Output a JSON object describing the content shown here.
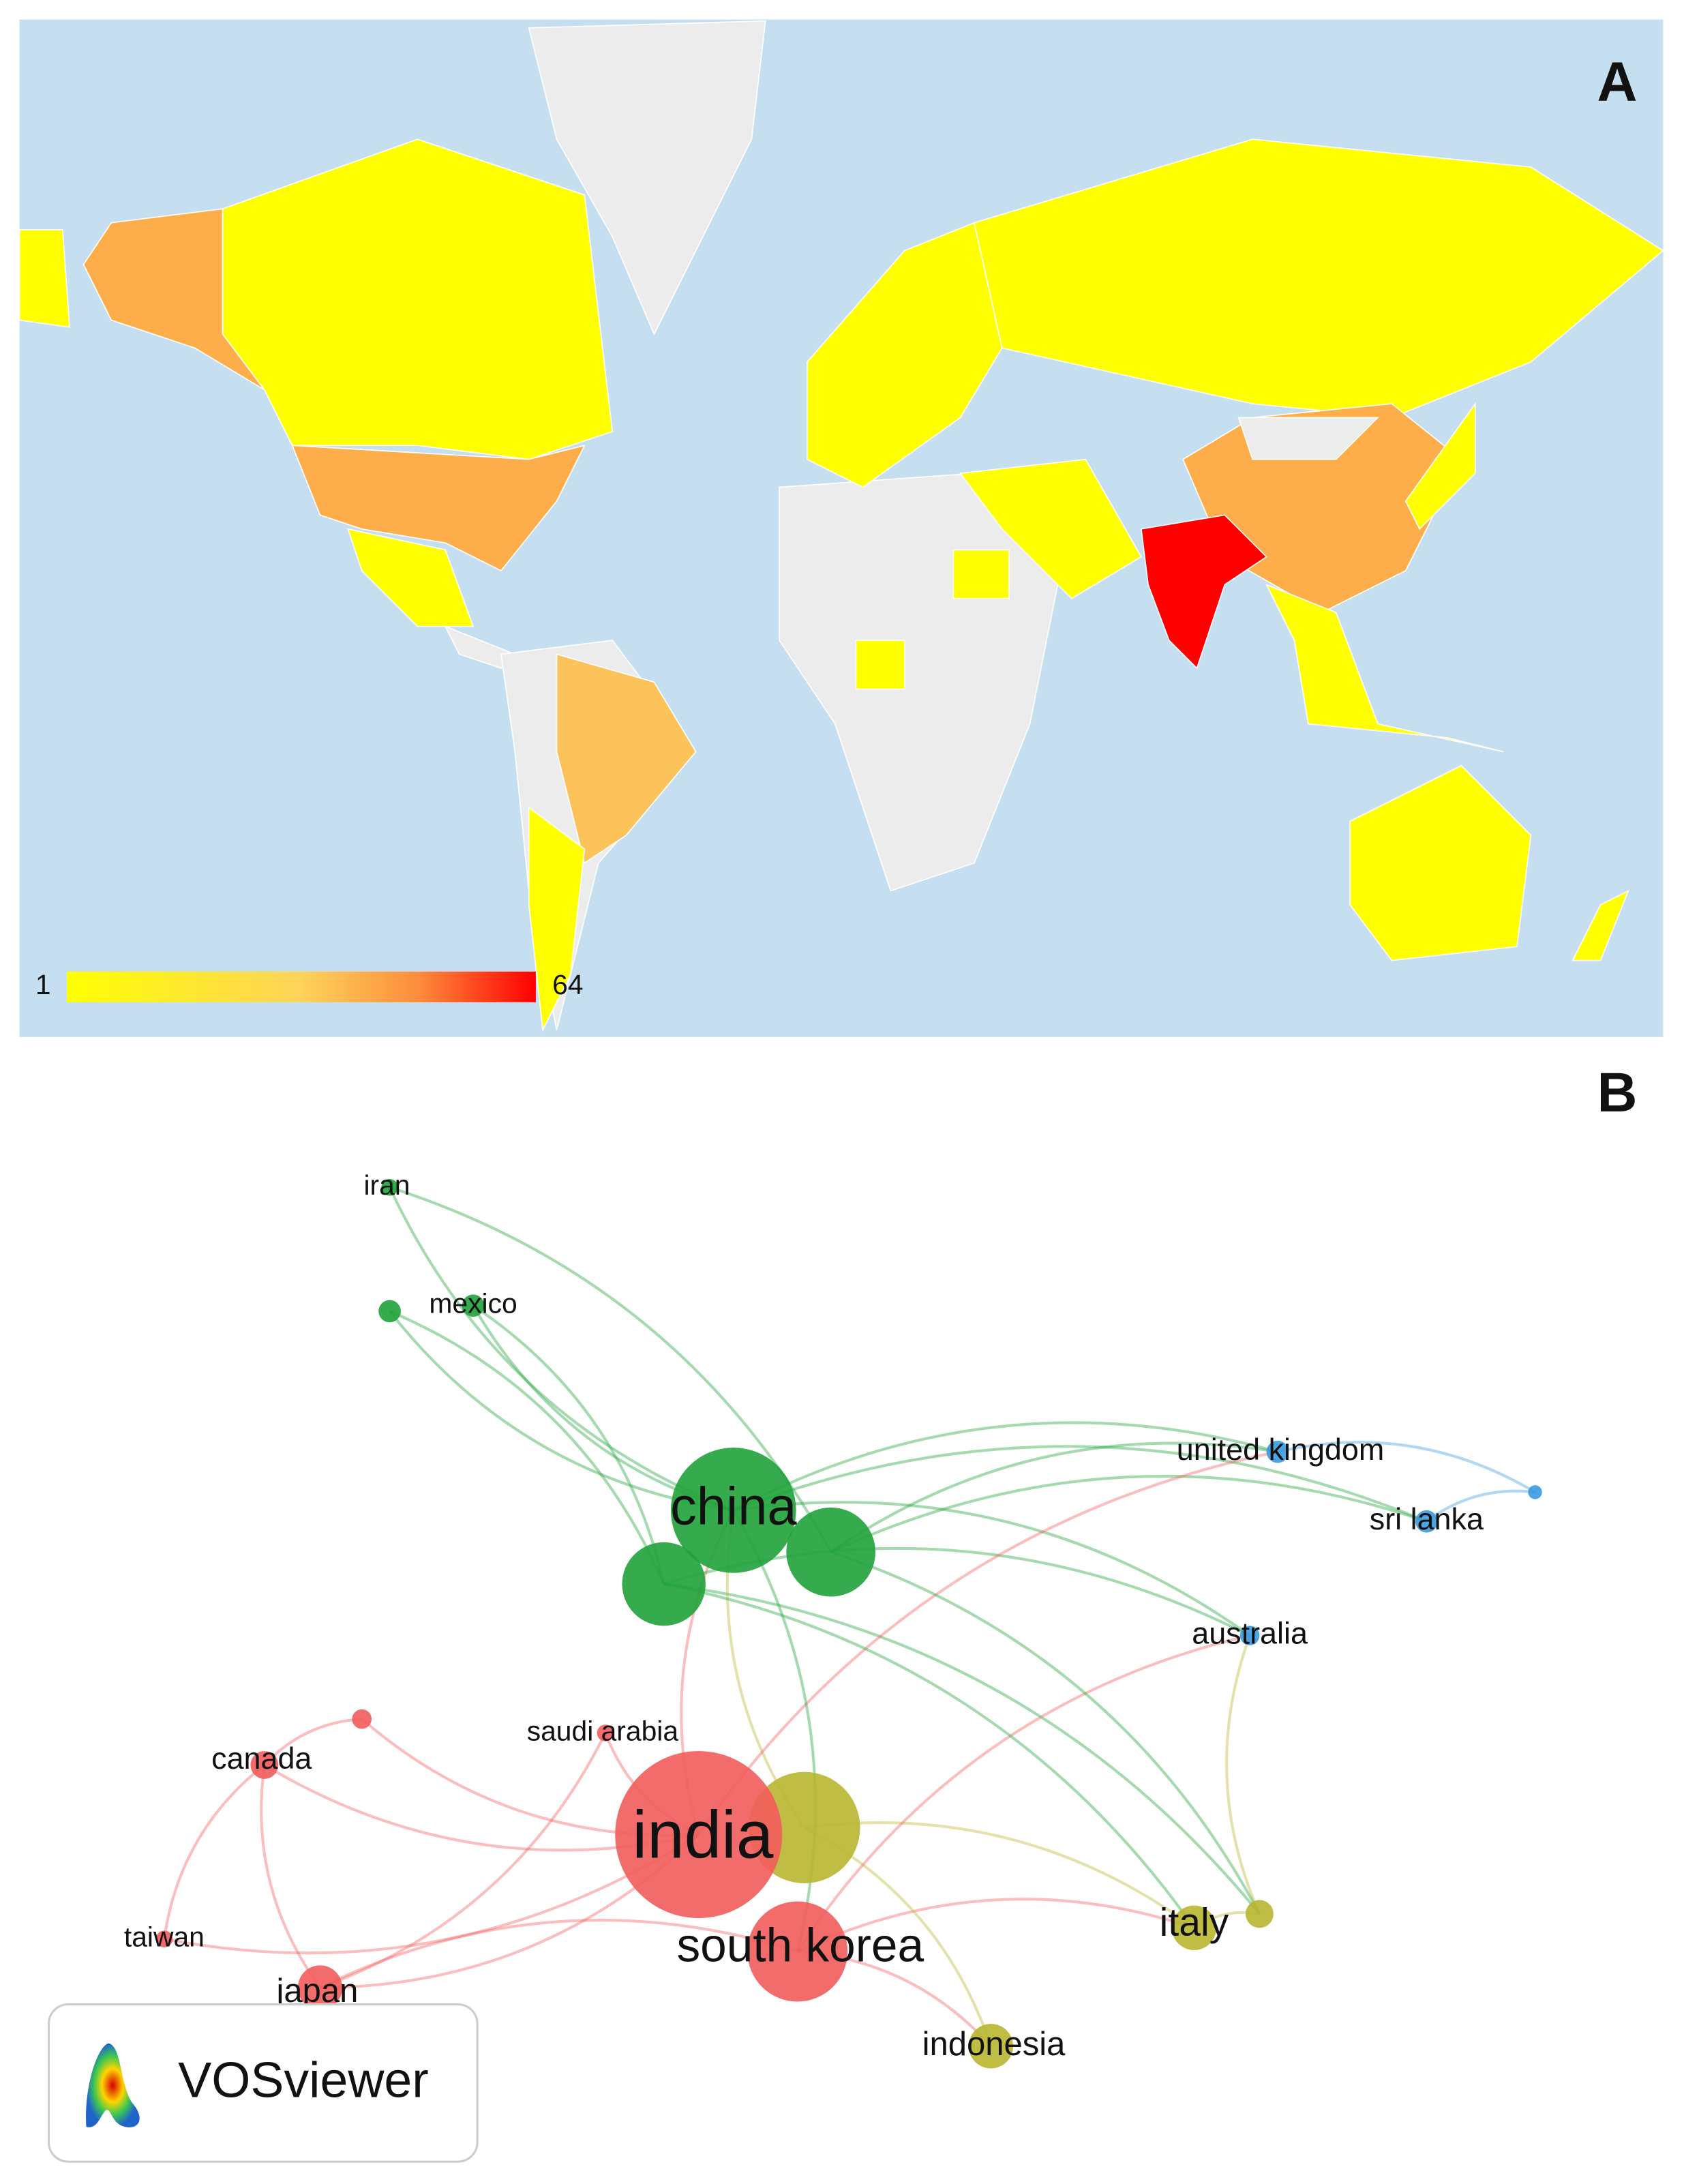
{
  "panel_a": {
    "label": "A",
    "legend": {
      "min": 1,
      "max": 64
    }
  },
  "panel_b": {
    "label": "B",
    "nodes": [
      {
        "label": "iran"
      },
      {
        "label": "mexico"
      },
      {
        "label": "china"
      },
      {
        "label": "united kingdom"
      },
      {
        "label": "sri lanka"
      },
      {
        "label": "australia"
      },
      {
        "label": "saudi arabia"
      },
      {
        "label": "canada"
      },
      {
        "label": "india"
      },
      {
        "label": "south korea"
      },
      {
        "label": "italy"
      },
      {
        "label": "taiwan"
      },
      {
        "label": "japan"
      },
      {
        "label": "indonesia"
      }
    ],
    "logo": "VOSviewer"
  }
}
